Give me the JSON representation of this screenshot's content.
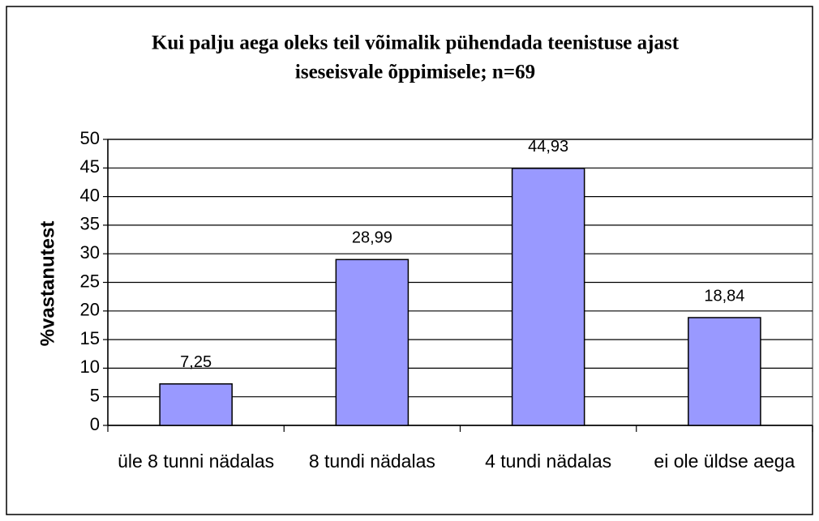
{
  "chart_data": {
    "type": "bar",
    "title": [
      "Kui palju aega oleks teil võimalik pühendada teenistuse ajast",
      "iseseisvale õppimisele; n=69"
    ],
    "y_label": "%vastanutest",
    "categories": [
      "üle 8 tunni nädalas",
      "8 tundi nädalas",
      "4 tundi nädalas",
      "ei ole üldse aega"
    ],
    "values": [
      7.25,
      28.99,
      44.93,
      18.84
    ],
    "value_labels": [
      "7,25",
      "28,99",
      "44,93",
      "18,84"
    ],
    "color": "#9999ff",
    "ylim": [
      0,
      50
    ],
    "yticks": [
      0,
      5,
      10,
      15,
      20,
      25,
      30,
      35,
      40,
      45,
      50
    ],
    "grid": true
  }
}
